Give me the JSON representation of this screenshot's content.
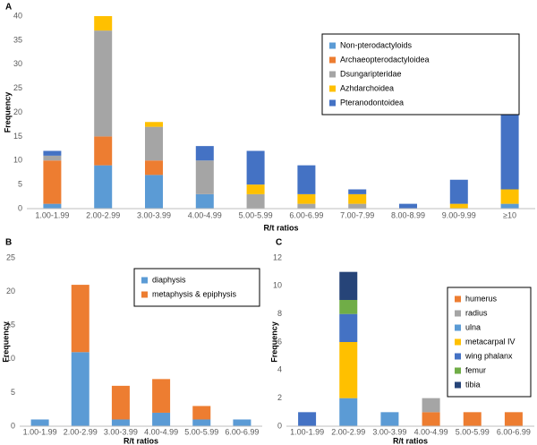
{
  "chart_data": [
    {
      "type": "bar",
      "stacked": true,
      "label": "A",
      "x_label": "R/t ratios",
      "y_label": "Frequency",
      "categories": [
        "1.00-1.99",
        "2.00-2.99",
        "3.00-3.99",
        "4.00-4.99",
        "5.00-5.99",
        "6.00-6.99",
        "7.00-7.99",
        "8.00-8.99",
        "9.00-9.99",
        "≥10"
      ],
      "series": [
        {
          "name": "Non-pterodactyloids",
          "color": "#5b9bd5",
          "values": [
            1,
            9,
            7,
            3,
            0,
            0,
            0,
            0,
            0,
            1
          ]
        },
        {
          "name": "Archaeopterodactyloidea",
          "color": "#ed7d31",
          "values": [
            9,
            6,
            3,
            0,
            0,
            0,
            0,
            0,
            0,
            0
          ]
        },
        {
          "name": "Dsungaripteridae",
          "color": "#a5a5a5",
          "values": [
            1,
            22,
            7,
            7,
            3,
            1,
            1,
            0,
            0,
            0
          ]
        },
        {
          "name": "Azhdarchoidea",
          "color": "#ffc000",
          "values": [
            0,
            3,
            1,
            0,
            2,
            2,
            2,
            0,
            1,
            3
          ]
        },
        {
          "name": "Pteranodontoidea",
          "color": "#4472c4",
          "values": [
            1,
            0,
            0,
            3,
            7,
            6,
            1,
            1,
            5,
            24
          ]
        }
      ],
      "ylim": [
        0,
        40
      ],
      "yticks": [
        0,
        5,
        10,
        15,
        20,
        25,
        30,
        35,
        40
      ],
      "grid": false,
      "legend": "upper right"
    },
    {
      "type": "bar",
      "stacked": true,
      "label": "B",
      "x_label": "R/t ratios",
      "y_label": "Frequency",
      "categories": [
        "1.00-1.99",
        "2.00-2.99",
        "3.00-3.99",
        "4.00-4.99",
        "5.00-5.99",
        "6.00-6.99"
      ],
      "series": [
        {
          "name": "diaphysis",
          "color": "#5b9bd5",
          "values": [
            1,
            11,
            1,
            2,
            1,
            1
          ]
        },
        {
          "name": "metaphysis & epiphysis",
          "color": "#ed7d31",
          "values": [
            0,
            10,
            5,
            5,
            2,
            0
          ]
        }
      ],
      "ylim": [
        0,
        25
      ],
      "yticks": [
        0,
        5,
        10,
        15,
        20,
        25
      ],
      "grid": false,
      "legend": "upper right"
    },
    {
      "type": "bar",
      "stacked": true,
      "label": "C",
      "x_label": "R/t ratios",
      "y_label": "Frequency",
      "categories": [
        "1.00-1.99",
        "2.00-2.99",
        "3.00-3.99",
        "4.00-4.99",
        "5.00-5.99",
        "6.00-6.99"
      ],
      "series": [
        {
          "name": "humerus",
          "color": "#ed7d31",
          "values": [
            0,
            0,
            0,
            1,
            1,
            1
          ]
        },
        {
          "name": "radius",
          "color": "#a5a5a5",
          "values": [
            0,
            0,
            0,
            1,
            0,
            0
          ]
        },
        {
          "name": "ulna",
          "color": "#5b9bd5",
          "values": [
            0,
            2,
            1,
            0,
            0,
            0
          ]
        },
        {
          "name": "metacarpal IV",
          "color": "#ffc000",
          "values": [
            0,
            4,
            0,
            0,
            0,
            0
          ]
        },
        {
          "name": "wing phalanx",
          "color": "#4472c4",
          "values": [
            1,
            2,
            0,
            0,
            0,
            0
          ]
        },
        {
          "name": "femur",
          "color": "#70ad47",
          "values": [
            0,
            1,
            0,
            0,
            0,
            0
          ]
        },
        {
          "name": "tibia",
          "color": "#264478",
          "values": [
            0,
            2,
            0,
            0,
            0,
            0
          ]
        }
      ],
      "ylim": [
        0,
        12
      ],
      "yticks": [
        0,
        2,
        4,
        6,
        8,
        10,
        12
      ],
      "grid": false,
      "legend": "right"
    }
  ]
}
